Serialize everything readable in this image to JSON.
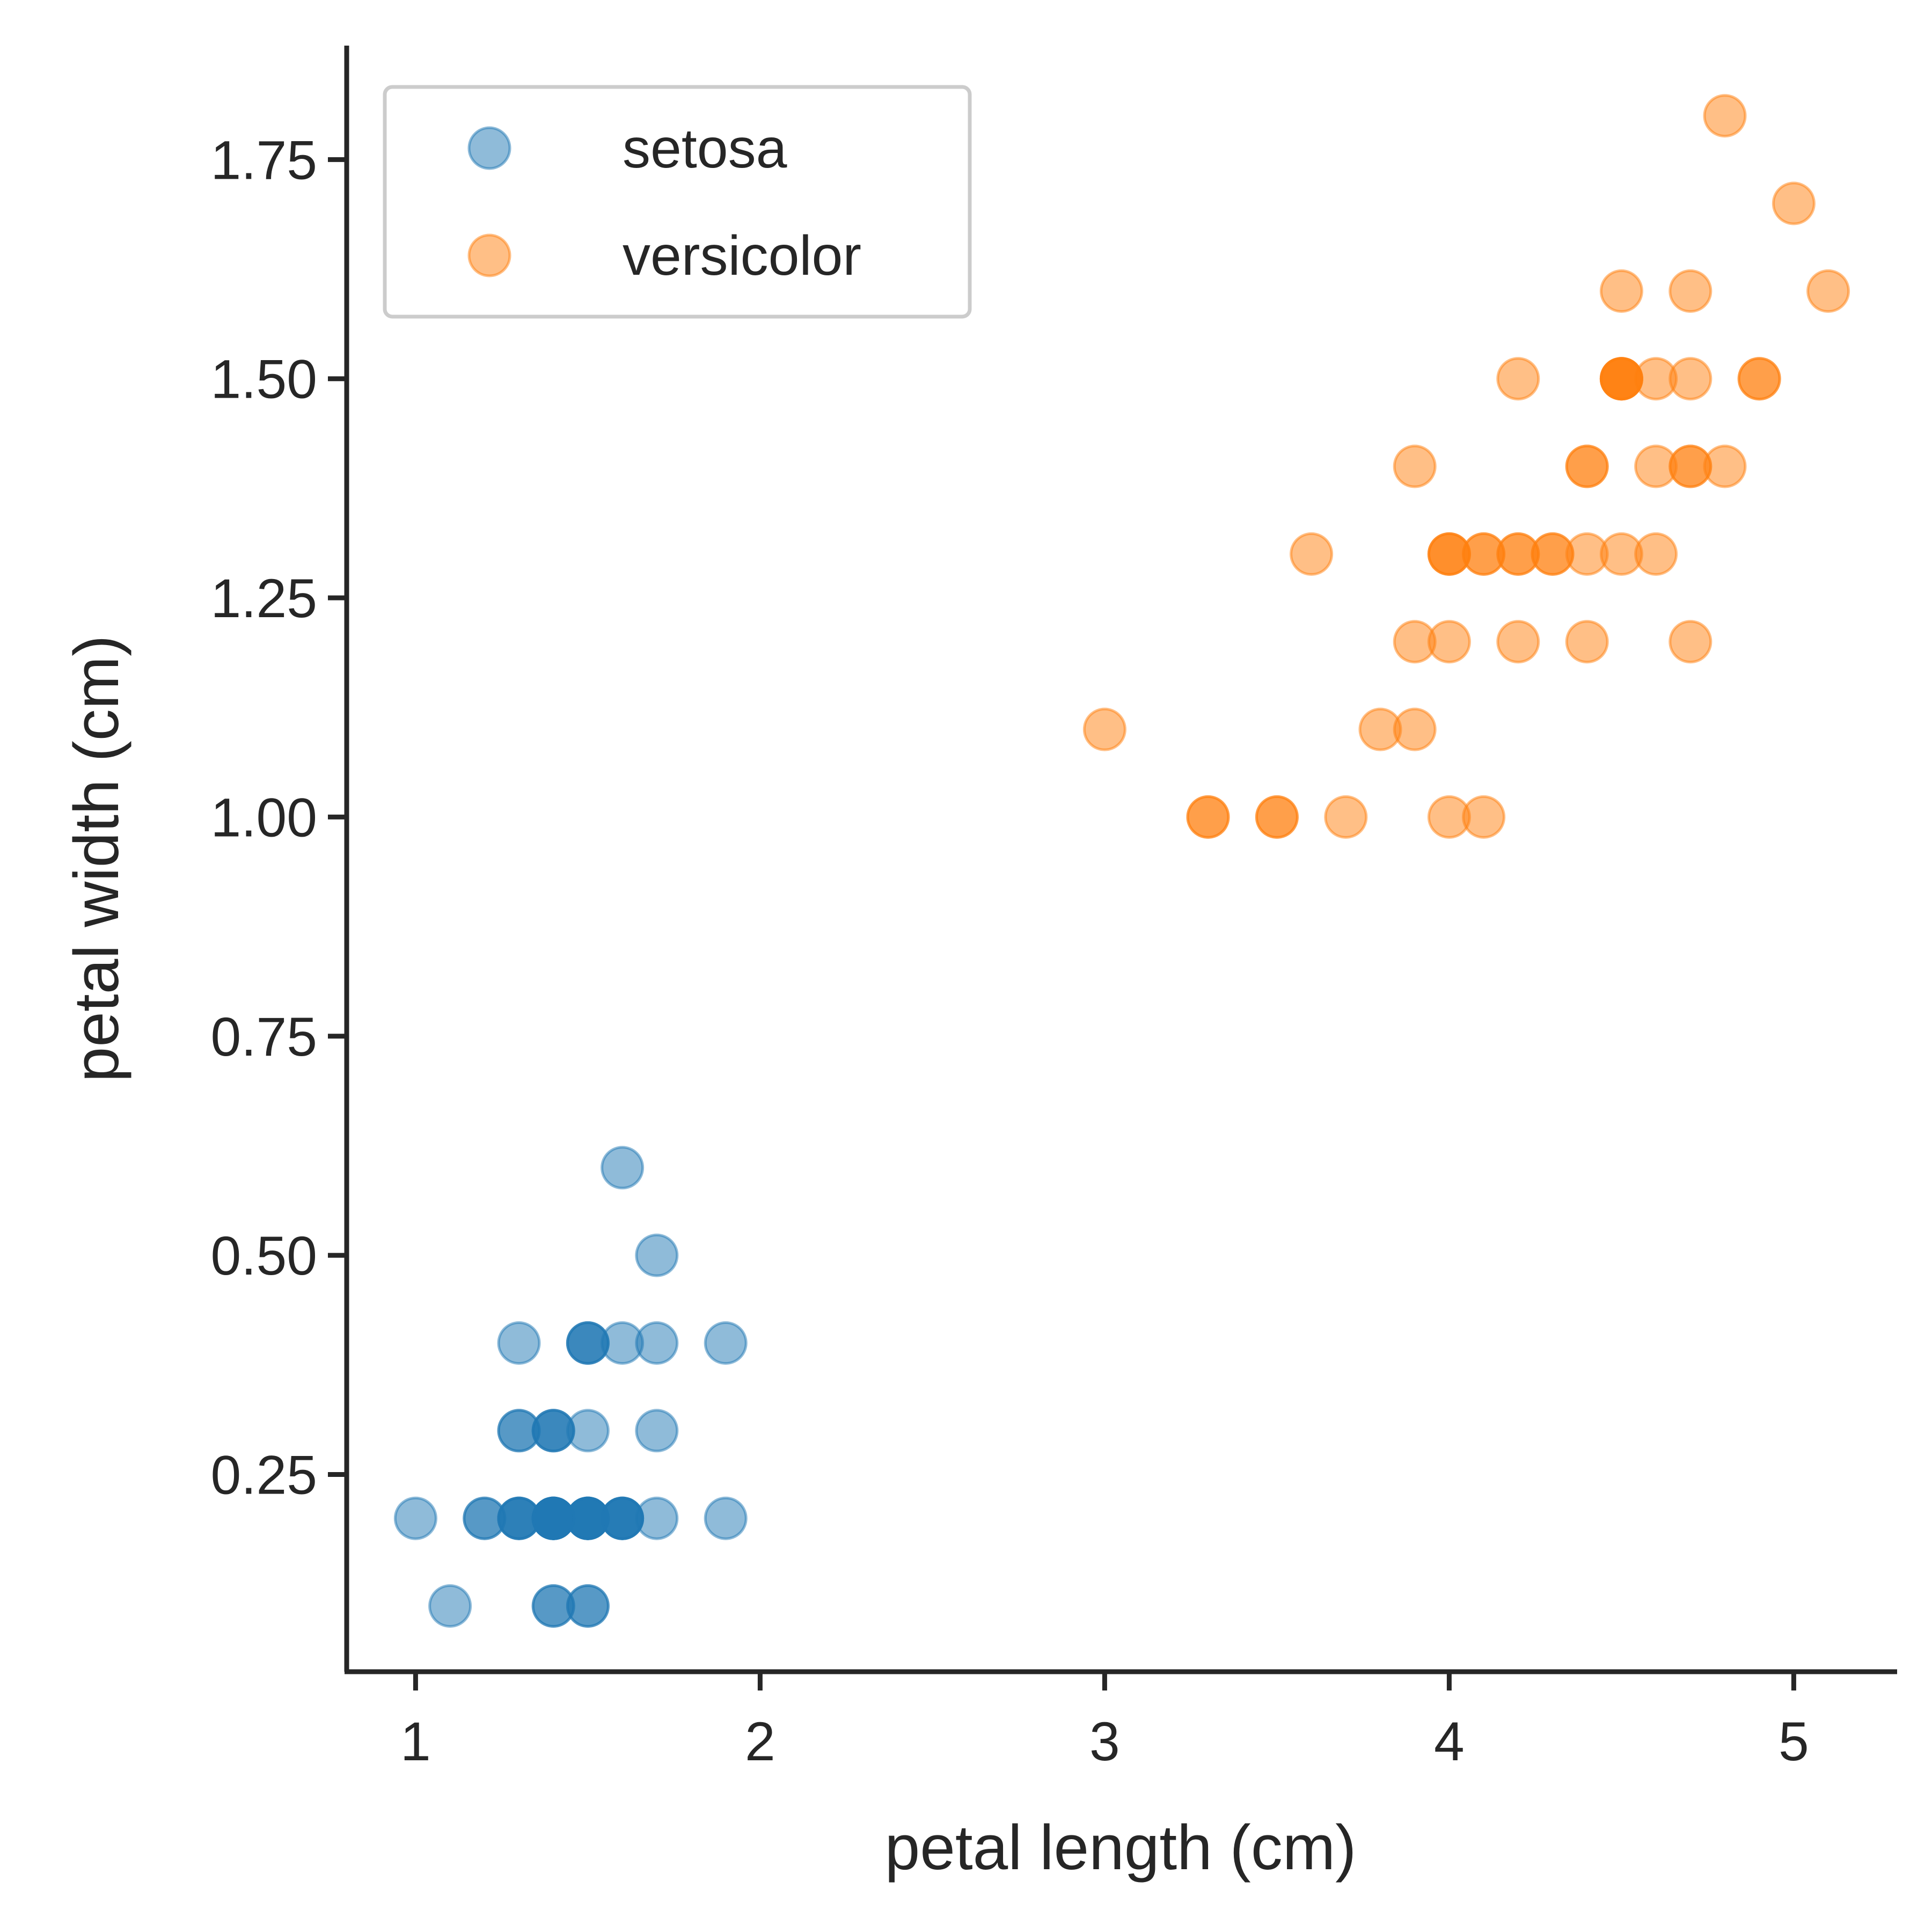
{
  "chart_data": {
    "type": "scatter",
    "title": "",
    "xlabel": "petal length (cm)",
    "ylabel": "petal width (cm)",
    "xlim": [
      0.8,
      5.3
    ],
    "ylim": [
      0.025,
      1.88
    ],
    "xticks": [
      1,
      2,
      3,
      4,
      5
    ],
    "xtick_labels": [
      "1",
      "2",
      "3",
      "4",
      "5"
    ],
    "yticks": [
      0.25,
      0.5,
      0.75,
      1.0,
      1.25,
      1.5,
      1.75
    ],
    "ytick_labels": [
      "0.25",
      "0.50",
      "0.75",
      "1.00",
      "1.25",
      "1.50",
      "1.75"
    ],
    "grid": false,
    "legend_position": "top-left",
    "marker_opacity": 0.5,
    "series": [
      {
        "name": "setosa",
        "color": "#1f77b4",
        "points": [
          [
            1.4,
            0.2
          ],
          [
            1.4,
            0.2
          ],
          [
            1.3,
            0.2
          ],
          [
            1.5,
            0.2
          ],
          [
            1.4,
            0.2
          ],
          [
            1.7,
            0.4
          ],
          [
            1.4,
            0.3
          ],
          [
            1.5,
            0.2
          ],
          [
            1.4,
            0.2
          ],
          [
            1.5,
            0.1
          ],
          [
            1.5,
            0.2
          ],
          [
            1.6,
            0.2
          ],
          [
            1.4,
            0.1
          ],
          [
            1.1,
            0.1
          ],
          [
            1.2,
            0.2
          ],
          [
            1.5,
            0.4
          ],
          [
            1.3,
            0.4
          ],
          [
            1.4,
            0.3
          ],
          [
            1.7,
            0.3
          ],
          [
            1.5,
            0.3
          ],
          [
            1.7,
            0.2
          ],
          [
            1.5,
            0.4
          ],
          [
            1.0,
            0.2
          ],
          [
            1.7,
            0.5
          ],
          [
            1.9,
            0.2
          ],
          [
            1.6,
            0.2
          ],
          [
            1.6,
            0.4
          ],
          [
            1.5,
            0.2
          ],
          [
            1.4,
            0.2
          ],
          [
            1.6,
            0.2
          ],
          [
            1.6,
            0.2
          ],
          [
            1.5,
            0.4
          ],
          [
            1.5,
            0.1
          ],
          [
            1.4,
            0.2
          ],
          [
            1.5,
            0.2
          ],
          [
            1.2,
            0.2
          ],
          [
            1.3,
            0.2
          ],
          [
            1.4,
            0.1
          ],
          [
            1.3,
            0.2
          ],
          [
            1.5,
            0.2
          ],
          [
            1.3,
            0.3
          ],
          [
            1.3,
            0.3
          ],
          [
            1.3,
            0.2
          ],
          [
            1.6,
            0.6
          ],
          [
            1.9,
            0.4
          ],
          [
            1.4,
            0.3
          ],
          [
            1.6,
            0.2
          ],
          [
            1.4,
            0.2
          ],
          [
            1.5,
            0.2
          ],
          [
            1.4,
            0.2
          ]
        ]
      },
      {
        "name": "versicolor",
        "color": "#ff7f0e",
        "points": [
          [
            4.7,
            1.4
          ],
          [
            4.5,
            1.5
          ],
          [
            4.9,
            1.5
          ],
          [
            4.0,
            1.3
          ],
          [
            4.6,
            1.5
          ],
          [
            4.5,
            1.3
          ],
          [
            4.7,
            1.6
          ],
          [
            3.3,
            1.0
          ],
          [
            4.6,
            1.3
          ],
          [
            3.9,
            1.4
          ],
          [
            3.5,
            1.0
          ],
          [
            4.2,
            1.5
          ],
          [
            4.0,
            1.0
          ],
          [
            4.7,
            1.4
          ],
          [
            3.6,
            1.3
          ],
          [
            4.4,
            1.4
          ],
          [
            4.5,
            1.5
          ],
          [
            4.1,
            1.0
          ],
          [
            4.5,
            1.5
          ],
          [
            3.9,
            1.1
          ],
          [
            4.8,
            1.8
          ],
          [
            4.0,
            1.3
          ],
          [
            4.9,
            1.5
          ],
          [
            4.7,
            1.2
          ],
          [
            4.3,
            1.3
          ],
          [
            4.4,
            1.4
          ],
          [
            4.8,
            1.4
          ],
          [
            5.0,
            1.7
          ],
          [
            4.5,
            1.5
          ],
          [
            3.5,
            1.0
          ],
          [
            3.8,
            1.1
          ],
          [
            3.7,
            1.0
          ],
          [
            3.9,
            1.2
          ],
          [
            5.1,
            1.6
          ],
          [
            4.5,
            1.5
          ],
          [
            4.5,
            1.6
          ],
          [
            4.7,
            1.5
          ],
          [
            4.4,
            1.3
          ],
          [
            4.1,
            1.3
          ],
          [
            4.0,
            1.3
          ],
          [
            4.4,
            1.2
          ],
          [
            4.6,
            1.4
          ],
          [
            4.0,
            1.2
          ],
          [
            3.3,
            1.0
          ],
          [
            4.2,
            1.3
          ],
          [
            4.2,
            1.2
          ],
          [
            4.2,
            1.3
          ],
          [
            4.3,
            1.3
          ],
          [
            3.0,
            1.1
          ],
          [
            4.1,
            1.3
          ]
        ]
      }
    ]
  }
}
